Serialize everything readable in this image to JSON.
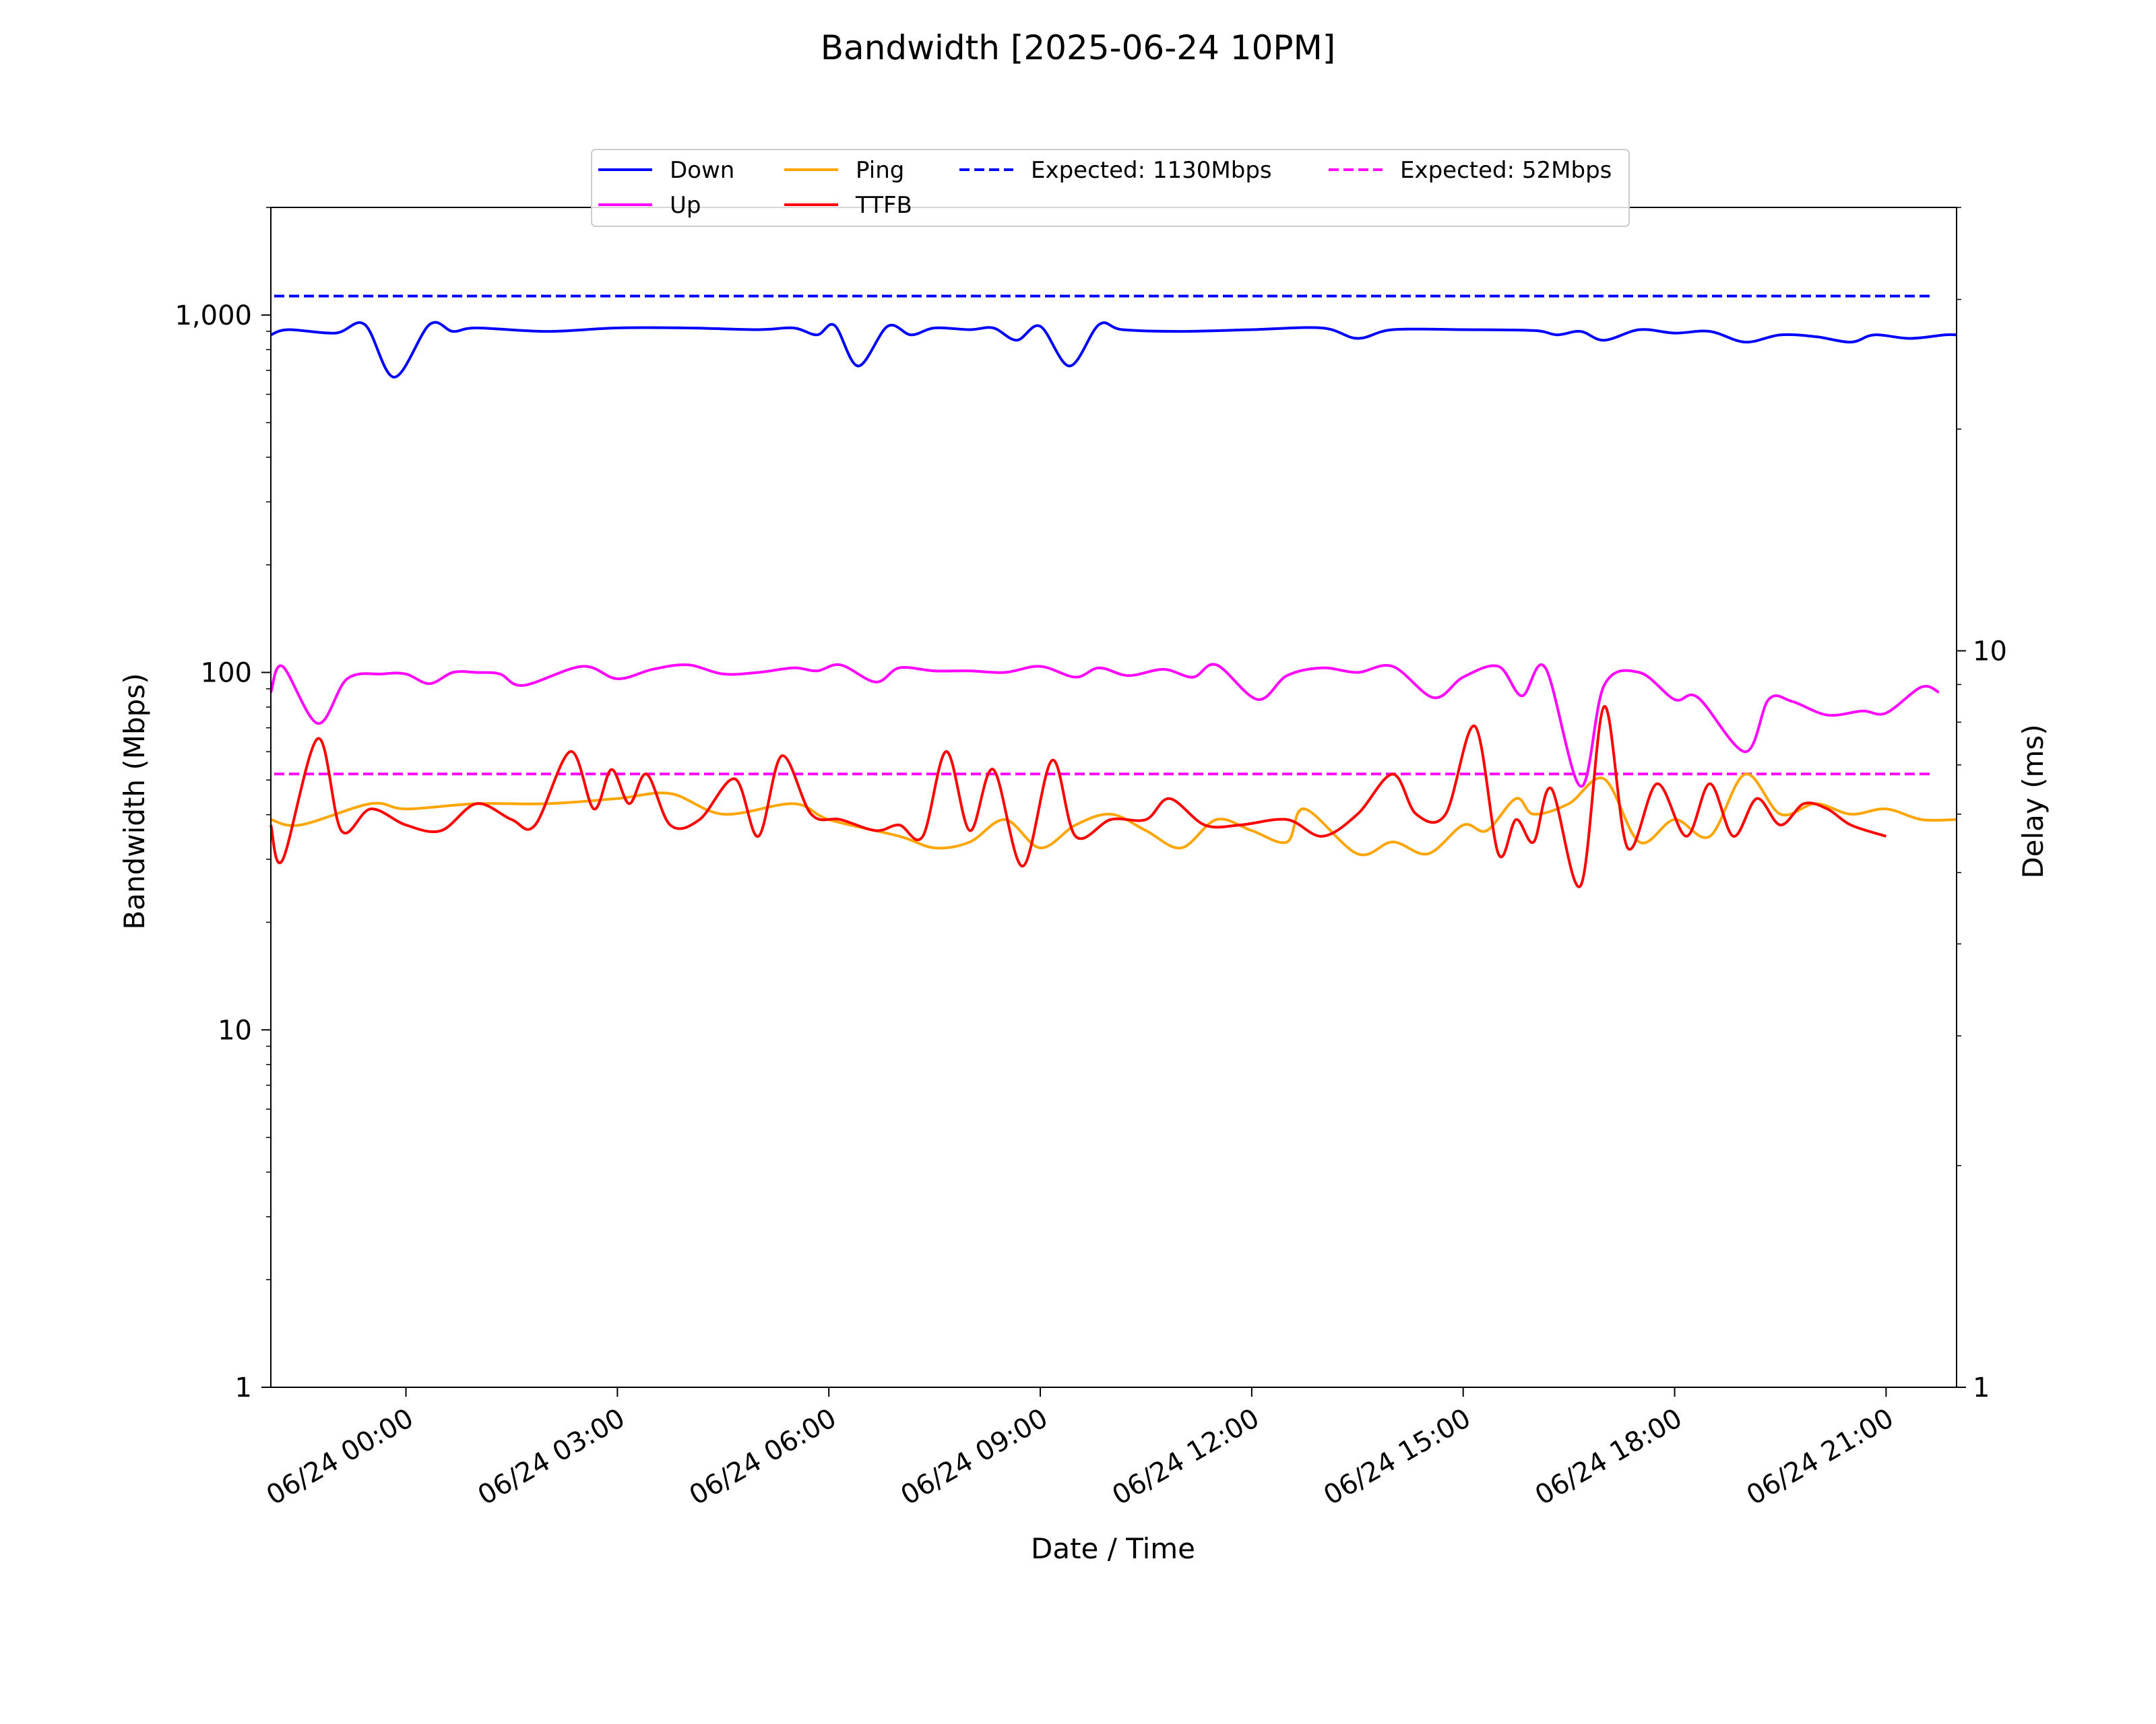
{
  "chart_data": {
    "type": "line",
    "title": "Bandwidth [2025-06-24 10PM]",
    "xlabel": "Date / Time",
    "ylabel": "Bandwidth (Mbps)",
    "y2label": "Delay (ms)",
    "yscale": "log",
    "y2scale": "log",
    "ylim": [
      1,
      2000
    ],
    "y2lim": [
      1,
      40
    ],
    "xlim": [
      "06/23 22:05",
      "06/24 22:00"
    ],
    "grid": false,
    "legend_position": "top-center",
    "x_ticks": [
      "06/24 00:00",
      "06/24 03:00",
      "06/24 06:00",
      "06/24 09:00",
      "06/24 12:00",
      "06/24 15:00",
      "06/24 18:00",
      "06/24 21:00"
    ],
    "y_ticks": [
      "1",
      "10",
      "100",
      "1,000"
    ],
    "y2_ticks": [
      "1",
      "10"
    ],
    "legend": [
      {
        "label": "Down",
        "color": "#0000ff",
        "style": "solid"
      },
      {
        "label": "Up",
        "color": "#ff00ff",
        "style": "solid"
      },
      {
        "label": "Ping",
        "color": "#ffa500",
        "style": "solid"
      },
      {
        "label": "TTFB",
        "color": "#ff0000",
        "style": "solid"
      },
      {
        "label": "Expected: 1130Mbps",
        "color": "#0000ff",
        "style": "dashed"
      },
      {
        "label": "Expected: 52Mbps",
        "color": "#ff00ff",
        "style": "dashed"
      }
    ],
    "reference_lines": [
      {
        "name": "Expected: 1130Mbps",
        "axis": "left",
        "value": 1130,
        "color": "#0000ff"
      },
      {
        "name": "Expected: 52Mbps",
        "axis": "left",
        "value": 52,
        "color": "#ff00ff"
      }
    ],
    "series": [
      {
        "name": "Down",
        "axis": "left",
        "color": "#0000ff",
        "points": [
          [
            "06/23 22:05",
            880
          ],
          [
            "06/23 22:20",
            910
          ],
          [
            "06/23 23:00",
            890
          ],
          [
            "06/23 23:25",
            940
          ],
          [
            "06/23 23:50",
            670
          ],
          [
            "06/24 00:20",
            940
          ],
          [
            "06/24 00:40",
            900
          ],
          [
            "06/24 01:00",
            920
          ],
          [
            "06/24 02:00",
            900
          ],
          [
            "06/24 03:00",
            920
          ],
          [
            "06/24 04:00",
            920
          ],
          [
            "06/24 05:00",
            910
          ],
          [
            "06/24 05:30",
            920
          ],
          [
            "06/24 05:50",
            880
          ],
          [
            "06/24 06:05",
            935
          ],
          [
            "06/24 06:25",
            720
          ],
          [
            "06/24 06:50",
            930
          ],
          [
            "06/24 07:10",
            880
          ],
          [
            "06/24 07:30",
            920
          ],
          [
            "06/24 08:00",
            910
          ],
          [
            "06/24 08:20",
            920
          ],
          [
            "06/24 08:40",
            850
          ],
          [
            "06/24 09:00",
            930
          ],
          [
            "06/24 09:25",
            720
          ],
          [
            "06/24 09:50",
            940
          ],
          [
            "06/24 10:10",
            910
          ],
          [
            "06/24 11:00",
            900
          ],
          [
            "06/24 12:00",
            910
          ],
          [
            "06/24 13:00",
            920
          ],
          [
            "06/24 13:30",
            860
          ],
          [
            "06/24 14:00",
            910
          ],
          [
            "06/24 15:00",
            910
          ],
          [
            "06/24 16:00",
            905
          ],
          [
            "06/24 16:20",
            880
          ],
          [
            "06/24 16:40",
            900
          ],
          [
            "06/24 17:00",
            850
          ],
          [
            "06/24 17:30",
            910
          ],
          [
            "06/24 18:00",
            890
          ],
          [
            "06/24 18:30",
            900
          ],
          [
            "06/24 19:00",
            840
          ],
          [
            "06/24 19:30",
            880
          ],
          [
            "06/24 20:00",
            870
          ],
          [
            "06/24 20:30",
            840
          ],
          [
            "06/24 20:50",
            880
          ],
          [
            "06/24 21:20",
            860
          ],
          [
            "06/24 21:50",
            880
          ],
          [
            "06/24 22:00",
            880
          ]
        ]
      },
      {
        "name": "Up",
        "axis": "left",
        "color": "#ff00ff",
        "points": [
          [
            "06/23 22:05",
            88
          ],
          [
            "06/23 22:15",
            104
          ],
          [
            "06/23 22:45",
            72
          ],
          [
            "06/23 23:10",
            96
          ],
          [
            "06/23 23:40",
            99
          ],
          [
            "06/24 00:00",
            99
          ],
          [
            "06/24 00:20",
            93
          ],
          [
            "06/24 00:40",
            100
          ],
          [
            "06/24 01:00",
            100
          ],
          [
            "06/24 01:20",
            99
          ],
          [
            "06/24 01:40",
            92
          ],
          [
            "06/24 02:30",
            104
          ],
          [
            "06/24 03:00",
            96
          ],
          [
            "06/24 03:30",
            102
          ],
          [
            "06/24 04:00",
            105
          ],
          [
            "06/24 04:30",
            99
          ],
          [
            "06/24 05:00",
            100
          ],
          [
            "06/24 05:30",
            103
          ],
          [
            "06/24 05:50",
            101
          ],
          [
            "06/24 06:10",
            105
          ],
          [
            "06/24 06:40",
            94
          ],
          [
            "06/24 07:00",
            103
          ],
          [
            "06/24 07:30",
            101
          ],
          [
            "06/24 08:00",
            101
          ],
          [
            "06/24 08:30",
            100
          ],
          [
            "06/24 09:00",
            104
          ],
          [
            "06/24 09:30",
            97
          ],
          [
            "06/24 09:50",
            103
          ],
          [
            "06/24 10:15",
            98
          ],
          [
            "06/24 10:45",
            102
          ],
          [
            "06/24 11:10",
            97
          ],
          [
            "06/24 11:30",
            105
          ],
          [
            "06/24 12:05",
            84
          ],
          [
            "06/24 12:30",
            98
          ],
          [
            "06/24 13:00",
            103
          ],
          [
            "06/24 13:30",
            100
          ],
          [
            "06/24 14:00",
            104
          ],
          [
            "06/24 14:35",
            85
          ],
          [
            "06/24 15:00",
            97
          ],
          [
            "06/24 15:30",
            104
          ],
          [
            "06/24 15:50",
            86
          ],
          [
            "06/24 16:10",
            103
          ],
          [
            "06/24 16:40",
            48
          ],
          [
            "06/24 17:00",
            92
          ],
          [
            "06/24 17:30",
            100
          ],
          [
            "06/24 18:00",
            84
          ],
          [
            "06/24 18:20",
            85
          ],
          [
            "06/24 19:00",
            60
          ],
          [
            "06/24 19:20",
            84
          ],
          [
            "06/24 19:40",
            83
          ],
          [
            "06/24 20:10",
            76
          ],
          [
            "06/24 20:40",
            78
          ],
          [
            "06/24 21:00",
            77
          ],
          [
            "06/24 21:30",
            91
          ],
          [
            "06/24 21:45",
            88
          ]
        ]
      },
      {
        "name": "Ping",
        "axis": "right",
        "color": "#ffa500",
        "points": [
          [
            "06/23 22:05",
            5.9
          ],
          [
            "06/23 22:30",
            5.8
          ],
          [
            "06/23 23:30",
            6.2
          ],
          [
            "06/24 00:00",
            6.1
          ],
          [
            "06/24 01:00",
            6.2
          ],
          [
            "06/24 02:00",
            6.2
          ],
          [
            "06/24 03:00",
            6.3
          ],
          [
            "06/24 03:45",
            6.4
          ],
          [
            "06/24 04:30",
            6.0
          ],
          [
            "06/24 05:30",
            6.2
          ],
          [
            "06/24 06:00",
            5.9
          ],
          [
            "06/24 07:00",
            5.6
          ],
          [
            "06/24 07:30",
            5.4
          ],
          [
            "06/24 08:00",
            5.5
          ],
          [
            "06/24 08:30",
            5.9
          ],
          [
            "06/24 09:00",
            5.4
          ],
          [
            "06/24 09:30",
            5.8
          ],
          [
            "06/24 10:00",
            6.0
          ],
          [
            "06/24 10:30",
            5.7
          ],
          [
            "06/24 11:00",
            5.4
          ],
          [
            "06/24 11:30",
            5.9
          ],
          [
            "06/24 12:00",
            5.7
          ],
          [
            "06/24 12:30",
            5.5
          ],
          [
            "06/24 12:45",
            6.1
          ],
          [
            "06/24 13:30",
            5.3
          ],
          [
            "06/24 14:00",
            5.5
          ],
          [
            "06/24 14:30",
            5.3
          ],
          [
            "06/24 15:00",
            5.8
          ],
          [
            "06/24 15:20",
            5.7
          ],
          [
            "06/24 15:45",
            6.3
          ],
          [
            "06/24 16:00",
            6.0
          ],
          [
            "06/24 16:30",
            6.2
          ],
          [
            "06/24 17:00",
            6.7
          ],
          [
            "06/24 17:30",
            5.5
          ],
          [
            "06/24 18:00",
            5.9
          ],
          [
            "06/24 18:30",
            5.6
          ],
          [
            "06/24 19:00",
            6.8
          ],
          [
            "06/24 19:30",
            6.0
          ],
          [
            "06/24 20:00",
            6.2
          ],
          [
            "06/24 20:30",
            6.0
          ],
          [
            "06/24 21:00",
            6.1
          ],
          [
            "06/24 21:30",
            5.9
          ],
          [
            "06/24 22:00",
            5.9
          ]
        ]
      },
      {
        "name": "TTFB",
        "axis": "right",
        "color": "#ff0000",
        "points": [
          [
            "06/23 22:05",
            5.8
          ],
          [
            "06/23 22:15",
            5.2
          ],
          [
            "06/23 22:45",
            7.6
          ],
          [
            "06/23 23:05",
            5.7
          ],
          [
            "06/23 23:30",
            6.1
          ],
          [
            "06/24 00:00",
            5.8
          ],
          [
            "06/24 00:30",
            5.7
          ],
          [
            "06/24 01:00",
            6.2
          ],
          [
            "06/24 01:30",
            5.9
          ],
          [
            "06/24 01:50",
            5.8
          ],
          [
            "06/24 02:20",
            7.3
          ],
          [
            "06/24 02:40",
            6.1
          ],
          [
            "06/24 02:55",
            6.9
          ],
          [
            "06/24 03:10",
            6.2
          ],
          [
            "06/24 03:25",
            6.8
          ],
          [
            "06/24 03:45",
            5.8
          ],
          [
            "06/24 04:10",
            5.9
          ],
          [
            "06/24 04:40",
            6.7
          ],
          [
            "06/24 05:00",
            5.6
          ],
          [
            "06/24 05:20",
            7.2
          ],
          [
            "06/24 05:45",
            6.0
          ],
          [
            "06/24 06:10",
            5.9
          ],
          [
            "06/24 06:40",
            5.7
          ],
          [
            "06/24 07:00",
            5.8
          ],
          [
            "06/24 07:20",
            5.6
          ],
          [
            "06/24 07:40",
            7.3
          ],
          [
            "06/24 08:00",
            5.7
          ],
          [
            "06/24 08:20",
            6.9
          ],
          [
            "06/24 08:45",
            5.1
          ],
          [
            "06/24 09:10",
            7.1
          ],
          [
            "06/24 09:30",
            5.6
          ],
          [
            "06/24 10:00",
            5.9
          ],
          [
            "06/24 10:30",
            5.9
          ],
          [
            "06/24 10:50",
            6.3
          ],
          [
            "06/24 11:20",
            5.8
          ],
          [
            "06/24 11:50",
            5.8
          ],
          [
            "06/24 12:30",
            5.9
          ],
          [
            "06/24 13:00",
            5.6
          ],
          [
            "06/24 13:30",
            6.0
          ],
          [
            "06/24 14:00",
            6.8
          ],
          [
            "06/24 14:20",
            6.0
          ],
          [
            "06/24 14:45",
            6.0
          ],
          [
            "06/24 15:10",
            7.9
          ],
          [
            "06/24 15:30",
            5.3
          ],
          [
            "06/24 15:45",
            5.9
          ],
          [
            "06/24 16:00",
            5.5
          ],
          [
            "06/24 16:15",
            6.5
          ],
          [
            "06/24 16:40",
            4.8
          ],
          [
            "06/24 17:00",
            8.4
          ],
          [
            "06/24 17:20",
            5.4
          ],
          [
            "06/24 17:45",
            6.6
          ],
          [
            "06/24 18:10",
            5.6
          ],
          [
            "06/24 18:30",
            6.6
          ],
          [
            "06/24 18:50",
            5.6
          ],
          [
            "06/24 19:10",
            6.3
          ],
          [
            "06/24 19:30",
            5.8
          ],
          [
            "06/24 19:50",
            6.2
          ],
          [
            "06/24 20:10",
            6.1
          ],
          [
            "06/24 20:30",
            5.8
          ],
          [
            "06/24 21:00",
            5.6
          ]
        ]
      }
    ]
  }
}
